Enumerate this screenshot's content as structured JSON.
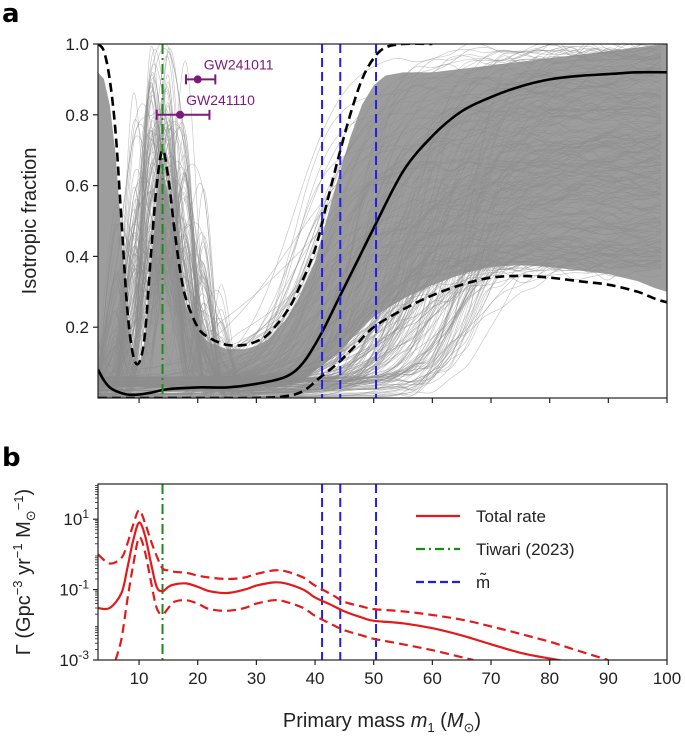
{
  "chart_data": [
    {
      "panel": "a",
      "type": "line",
      "ylabel": "Isotropic fraction",
      "xlim": [
        3,
        100
      ],
      "ylim": [
        0,
        1.0
      ],
      "yticks": [
        "0.2",
        "0.4",
        "0.6",
        "0.8",
        "1.0"
      ],
      "ytick_values": [
        0.2,
        0.4,
        0.6,
        0.8,
        1.0
      ],
      "colors": {
        "samples": "#8c8c8c",
        "median": "#000000",
        "bounds": "#000000",
        "tiwari": "#1a8a1a",
        "mtilde": "#1f1fe6",
        "annot": "#7b1a7b"
      },
      "series": [
        {
          "style": "solid",
          "x": [
            3,
            4,
            5,
            6,
            8,
            10,
            12,
            15,
            20,
            25,
            30,
            35,
            38,
            41,
            44,
            47,
            50,
            55,
            60,
            65,
            70,
            75,
            80,
            85,
            90,
            95,
            100
          ],
          "y": [
            0.08,
            0.05,
            0.03,
            0.02,
            0.01,
            0.01,
            0.015,
            0.025,
            0.03,
            0.03,
            0.04,
            0.06,
            0.1,
            0.18,
            0.28,
            0.38,
            0.48,
            0.64,
            0.74,
            0.81,
            0.85,
            0.88,
            0.9,
            0.91,
            0.915,
            0.92,
            0.92
          ]
        },
        {
          "style": "dashed",
          "x": [
            3,
            4,
            5,
            6,
            7,
            8,
            9,
            10,
            11,
            12,
            13,
            14,
            15,
            16,
            17,
            18,
            20,
            22,
            25,
            28,
            30,
            32,
            35,
            37,
            40,
            42,
            44,
            46,
            48,
            50,
            52,
            55,
            60
          ],
          "y": [
            1.0,
            0.98,
            0.9,
            0.75,
            0.5,
            0.25,
            0.12,
            0.1,
            0.18,
            0.4,
            0.6,
            0.7,
            0.62,
            0.48,
            0.36,
            0.28,
            0.2,
            0.17,
            0.15,
            0.15,
            0.16,
            0.18,
            0.24,
            0.3,
            0.42,
            0.55,
            0.68,
            0.8,
            0.9,
            0.96,
            0.99,
            1.0,
            1.0
          ]
        },
        {
          "style": "dashed",
          "x": [
            3,
            10,
            20,
            30,
            35,
            38,
            41,
            44,
            47,
            50,
            55,
            60,
            65,
            70,
            75,
            80,
            85,
            90,
            95,
            98,
            100
          ],
          "y": [
            0.0,
            0.0,
            0.0,
            0.0,
            0.005,
            0.02,
            0.06,
            0.1,
            0.15,
            0.2,
            0.25,
            0.29,
            0.32,
            0.34,
            0.345,
            0.34,
            0.33,
            0.32,
            0.3,
            0.28,
            0.27
          ]
        }
      ],
      "vlines": [
        {
          "x": 14,
          "style": "dashdot",
          "color": "#1a8a1a"
        },
        {
          "x": 41.2,
          "style": "dashed",
          "color": "#1f1fe6"
        },
        {
          "x": 44.3,
          "style": "dashed",
          "color": "#1f1fe6"
        },
        {
          "x": 50.4,
          "style": "dashed",
          "color": "#1f1fe6"
        }
      ],
      "annotations": [
        {
          "label": "GW241011",
          "x": 20,
          "xerr": [
            18,
            23
          ],
          "y": 0.9
        },
        {
          "label": "GW241110",
          "x": 17,
          "xerr": [
            13,
            22
          ],
          "y": 0.8
        }
      ]
    },
    {
      "panel": "b",
      "type": "line",
      "xlabel": "Primary mass m1 (M⊙)",
      "ylabel": "Γ (Gpc−3 yr−1 M⊙−1)",
      "xlim": [
        3,
        100
      ],
      "yscale": "log",
      "ylim": [
        0.001,
        100
      ],
      "xticks": [
        "10",
        "20",
        "30",
        "40",
        "50",
        "60",
        "70",
        "80",
        "90",
        "100"
      ],
      "xtick_values": [
        10,
        20,
        30,
        40,
        50,
        60,
        70,
        80,
        90,
        100
      ],
      "yticks": [
        "10-3",
        "10-1",
        "101"
      ],
      "ytick_values": [
        0.001,
        0.1,
        10
      ],
      "colors": {
        "rate": "#e31a1c",
        "tiwari": "#1a8a1a",
        "mtilde": "#1f1fe6"
      },
      "series": [
        {
          "name": "Total rate",
          "style": "solid",
          "x": [
            3,
            5,
            7,
            8,
            9,
            10,
            11,
            12,
            13,
            14,
            15,
            16,
            18,
            20,
            22,
            25,
            28,
            30,
            33,
            35,
            38,
            40,
            43,
            45,
            48,
            50,
            55,
            60,
            65,
            70,
            75,
            80,
            85
          ],
          "y": [
            0.03,
            0.03,
            0.08,
            0.4,
            2.5,
            8,
            3.5,
            0.6,
            0.12,
            0.09,
            0.12,
            0.14,
            0.15,
            0.12,
            0.09,
            0.08,
            0.1,
            0.13,
            0.16,
            0.15,
            0.1,
            0.06,
            0.035,
            0.024,
            0.016,
            0.013,
            0.011,
            0.008,
            0.005,
            0.0028,
            0.0016,
            0.0011,
            0.0008
          ]
        },
        {
          "style": "dashed",
          "x": [
            3,
            5,
            7,
            8,
            9,
            10,
            11,
            12,
            13,
            14,
            15,
            16,
            18,
            20,
            22,
            25,
            28,
            30,
            33,
            35,
            38,
            40,
            43,
            45,
            48,
            50,
            55,
            60,
            65,
            70,
            75,
            80,
            85,
            90
          ],
          "y": [
            1.0,
            0.55,
            0.8,
            2.0,
            7,
            18,
            8,
            2.5,
            0.9,
            0.4,
            0.35,
            0.32,
            0.3,
            0.25,
            0.22,
            0.2,
            0.22,
            0.28,
            0.35,
            0.33,
            0.22,
            0.13,
            0.07,
            0.045,
            0.033,
            0.028,
            0.024,
            0.019,
            0.014,
            0.009,
            0.0055,
            0.0033,
            0.0018,
            0.001
          ]
        },
        {
          "style": "dashed",
          "x": [
            6,
            7,
            8,
            9,
            10,
            11,
            12,
            13,
            14,
            15,
            16,
            18,
            20,
            22,
            25,
            28,
            30,
            33,
            35,
            38,
            40,
            43,
            45,
            48,
            50,
            55,
            60,
            65,
            67
          ],
          "y": [
            0.001,
            0.004,
            0.05,
            0.5,
            3,
            1.2,
            0.18,
            0.03,
            0.02,
            0.03,
            0.045,
            0.05,
            0.04,
            0.028,
            0.025,
            0.03,
            0.04,
            0.05,
            0.045,
            0.03,
            0.018,
            0.01,
            0.007,
            0.005,
            0.004,
            0.0028,
            0.0019,
            0.0012,
            0.001
          ]
        }
      ],
      "vlines": [
        {
          "x": 14,
          "style": "dashdot",
          "color": "#1a8a1a"
        },
        {
          "x": 41.2,
          "style": "dashed",
          "color": "#1f1fe6"
        },
        {
          "x": 44.3,
          "style": "dashed",
          "color": "#1f1fe6"
        },
        {
          "x": 50.4,
          "style": "dashed",
          "color": "#1f1fe6"
        }
      ],
      "legend": {
        "placement": "right",
        "entries": [
          {
            "label": "Total rate",
            "style": "solid",
            "color": "#e31a1c"
          },
          {
            "label": "Tiwari (2023)",
            "style": "dashdot",
            "color": "#1a8a1a"
          },
          {
            "label": "m̃",
            "style": "dashed",
            "color": "#1f1fe6"
          }
        ]
      }
    }
  ],
  "panels": {
    "a": "a",
    "b": "b"
  }
}
